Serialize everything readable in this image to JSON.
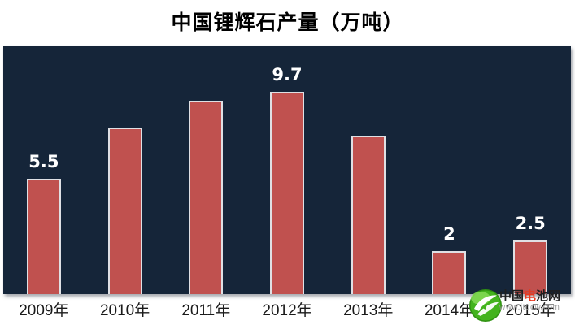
{
  "header": {
    "title": "中国锂辉石产量（万吨）"
  },
  "chart_data": {
    "type": "bar",
    "title": "中国锂辉石产量（万吨）",
    "categories": [
      "2009年",
      "2010年",
      "2011年",
      "2012年",
      "2013年",
      "2014年",
      "2015年"
    ],
    "values": [
      5.5,
      8,
      9.3,
      9.7,
      7.6,
      2,
      2.5
    ],
    "data_labels": [
      "5.5",
      null,
      null,
      "9.7",
      null,
      "2",
      "2.5"
    ],
    "xlabel": "",
    "ylabel": "",
    "ylim": [
      0,
      12
    ],
    "grid": false,
    "legend": false,
    "colors": {
      "plot_bg": "#152539",
      "bar_fill": "#c0514f",
      "bar_border": "#dfe0e4",
      "data_label_text": "#ffffff",
      "axis_text": "#1a1a1a",
      "page_bg": "#ffffff"
    }
  },
  "watermark": {
    "icon": "green-globe-swirl-icon",
    "site_name_parts": [
      {
        "text": "中国",
        "color": "#1f1f1f"
      },
      {
        "text": "电",
        "color": "#e8391f"
      },
      {
        "text": "池网",
        "color": "#1f1f1f"
      }
    ],
    "url": "www.itdcw.com"
  }
}
